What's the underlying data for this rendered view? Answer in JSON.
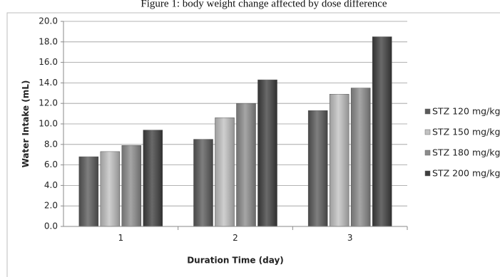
{
  "chart_data": {
    "type": "bar",
    "title": "Figure 1: body weight change affected by dose difference",
    "xlabel": "Duration Time (day)",
    "ylabel": "Water Intake (mL)",
    "categories": [
      "1",
      "2",
      "3"
    ],
    "yticks": [
      "0.0",
      "2.0",
      "4.0",
      "6.0",
      "8.0",
      "10.0",
      "12.0",
      "14.0",
      "16.0",
      "18.0",
      "20.0"
    ],
    "ylim": [
      0,
      20
    ],
    "grid": true,
    "legend_position": "right",
    "series": [
      {
        "name": "STZ 120 mg/kg",
        "values": [
          6.8,
          8.5,
          11.3
        ],
        "color": "#5a5a5a"
      },
      {
        "name": "STZ 150 mg/kg",
        "values": [
          7.3,
          10.6,
          12.9
        ],
        "color": "#c2c2c2"
      },
      {
        "name": "STZ 180 mg/kg",
        "values": [
          7.9,
          12.0,
          13.5
        ],
        "color": "#8c8c8c"
      },
      {
        "name": "STZ 200 mg/kg",
        "values": [
          9.4,
          14.3,
          18.5
        ],
        "color": "#3f3f3f"
      }
    ]
  }
}
